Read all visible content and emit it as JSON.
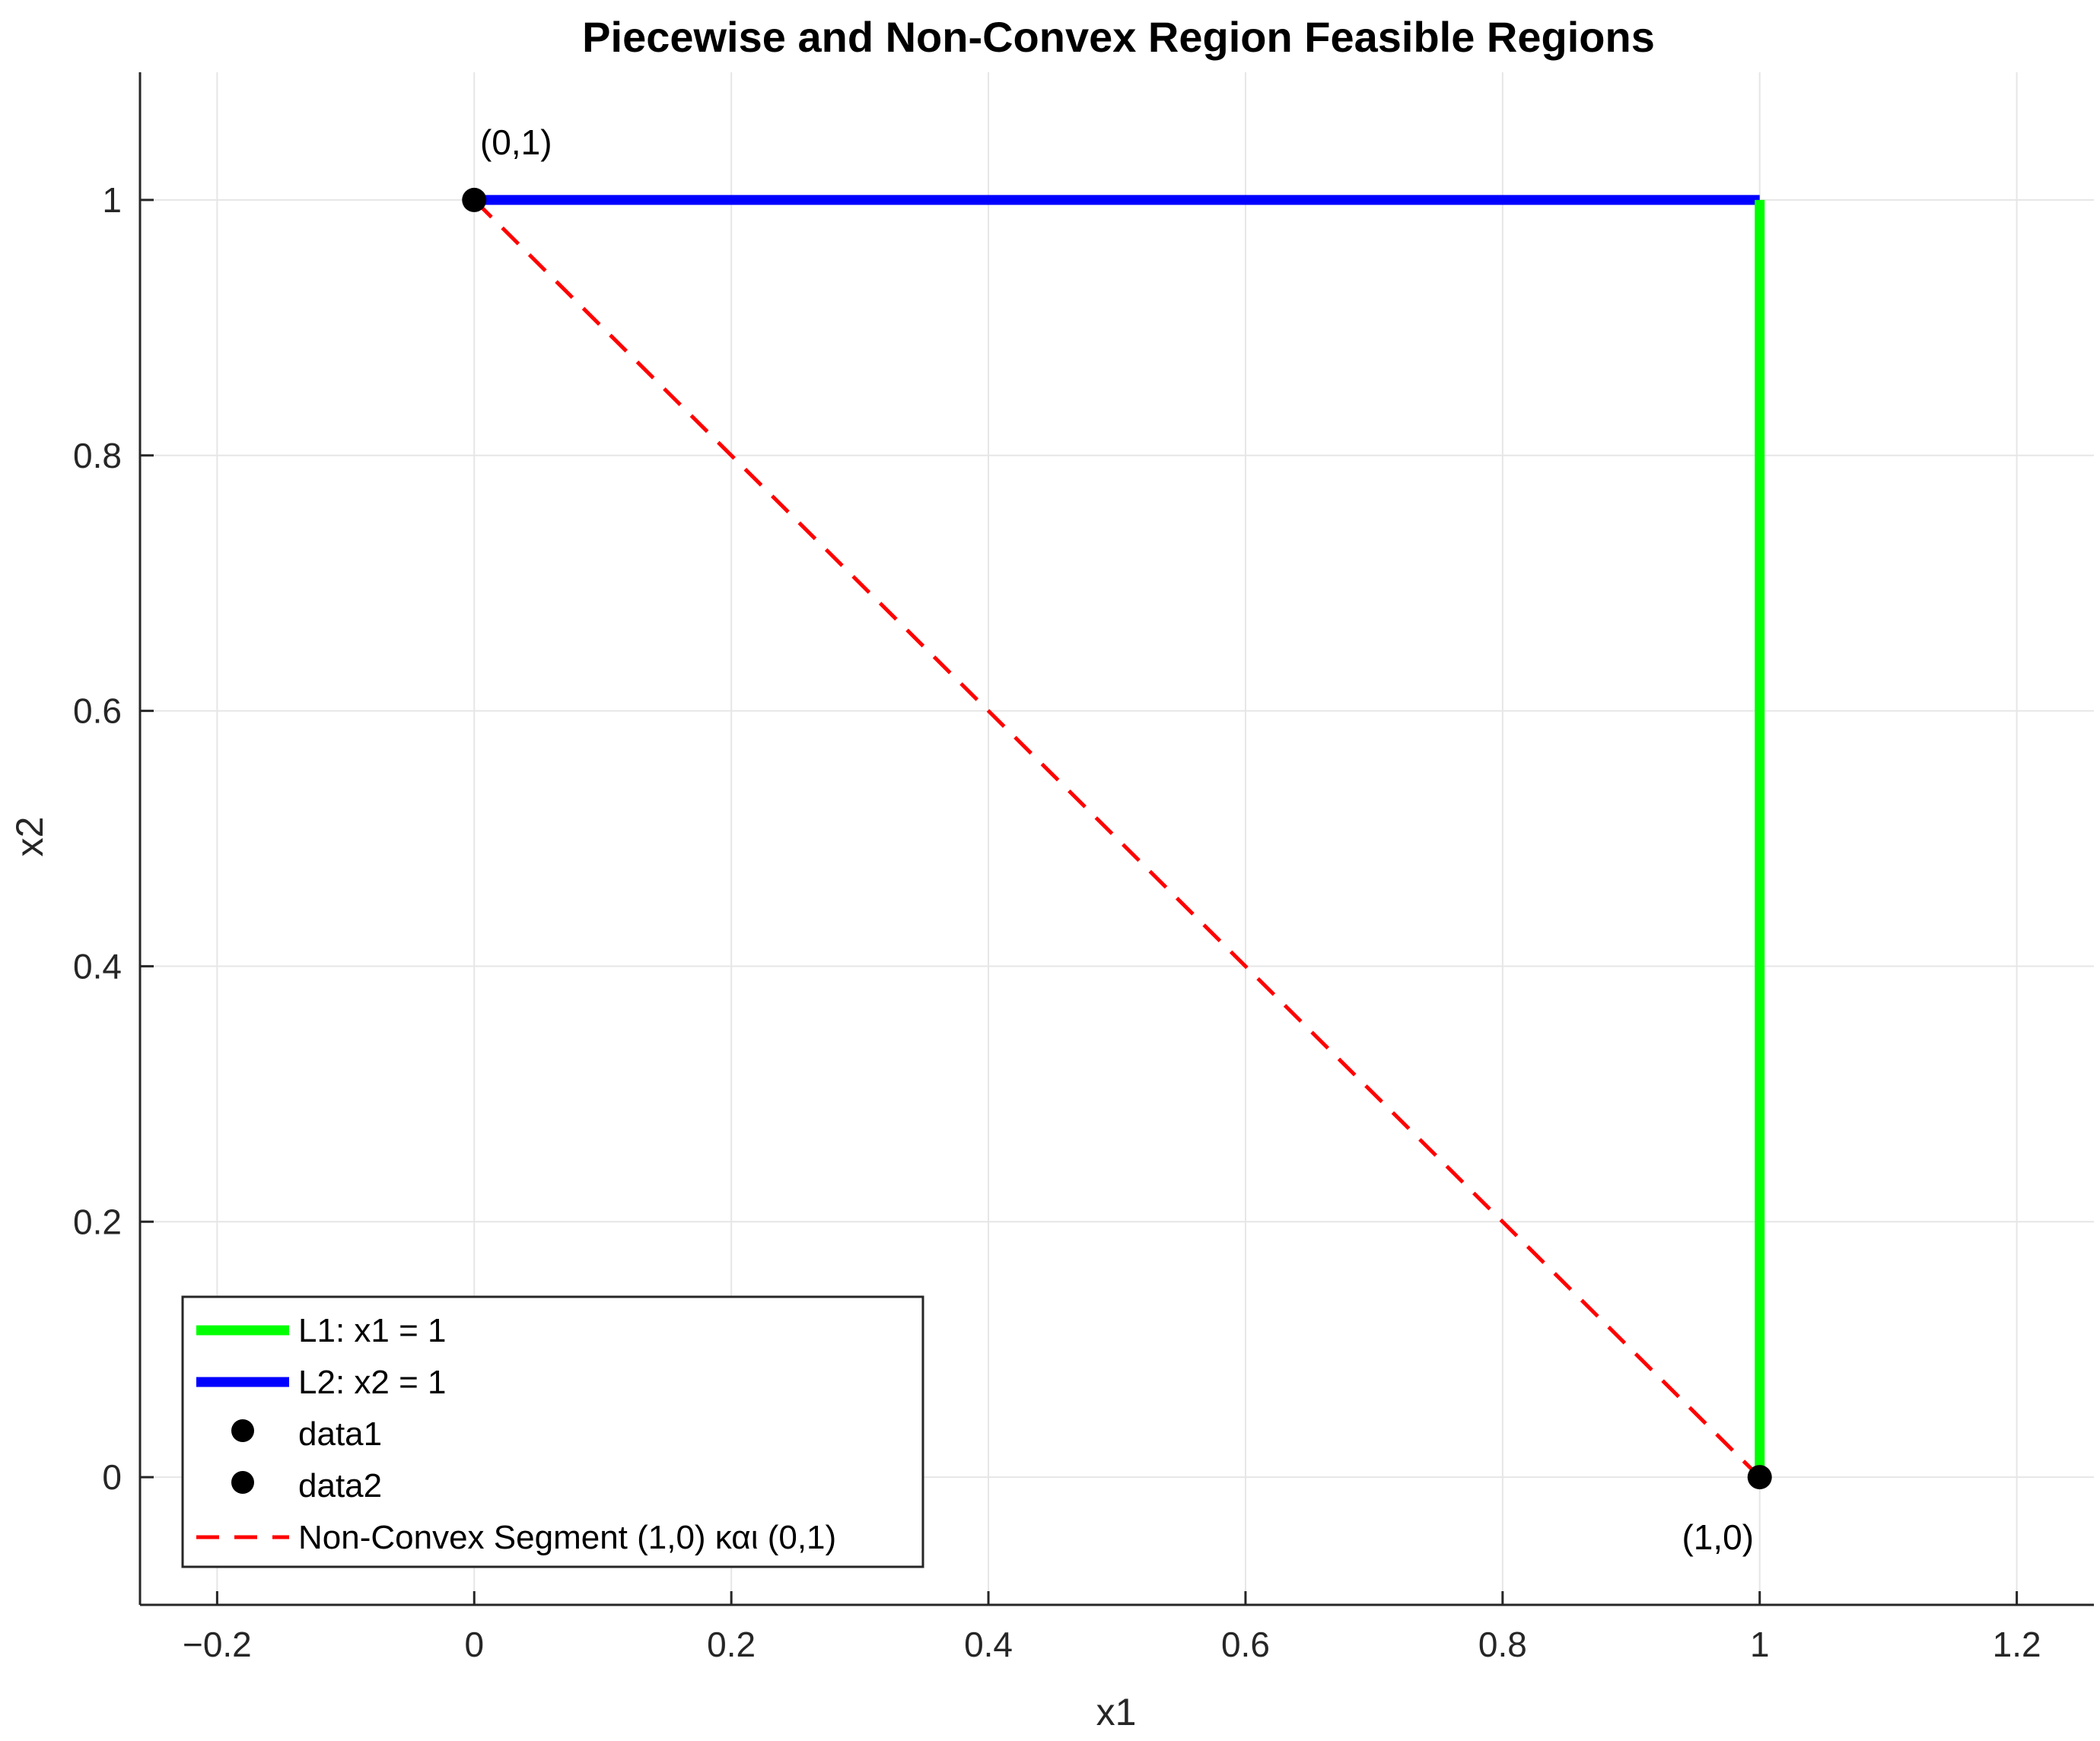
{
  "chart_data": {
    "type": "line",
    "title": "Piecewise and Non-Convex Region Feasible Regions",
    "xlabel": "x1",
    "ylabel": "x2",
    "xlim": [
      -0.26,
      1.26
    ],
    "ylim": [
      -0.1,
      1.1
    ],
    "grid": true,
    "legend_position": "bottom-left",
    "x_ticks": [
      -0.2,
      0,
      0.2,
      0.4,
      0.6,
      0.8,
      1,
      1.2
    ],
    "x_tick_labels": [
      "−0.2",
      "0",
      "0.2",
      "0.4",
      "0.6",
      "0.8",
      "1",
      "1.2"
    ],
    "y_ticks": [
      0,
      0.2,
      0.4,
      0.6,
      0.8,
      1
    ],
    "y_tick_labels": [
      "0",
      "0.2",
      "0.4",
      "0.6",
      "0.8",
      "1"
    ],
    "series": [
      {
        "name": "L1: x1 = 1",
        "style": "solid",
        "color": "#00ff00",
        "marker": "none",
        "x": [
          1,
          1
        ],
        "y": [
          0,
          1
        ]
      },
      {
        "name": "L2: x2 = 1",
        "style": "solid",
        "color": "#0000ff",
        "marker": "none",
        "x": [
          0,
          1
        ],
        "y": [
          1,
          1
        ]
      },
      {
        "name": "data1",
        "style": "none",
        "color": "#000000",
        "marker": "circle",
        "x": [
          0
        ],
        "y": [
          1
        ]
      },
      {
        "name": "data2",
        "style": "none",
        "color": "#000000",
        "marker": "circle",
        "x": [
          1
        ],
        "y": [
          0
        ]
      },
      {
        "name": "Non-Convex Segment (1,0) και (0,1)",
        "style": "dashed",
        "color": "#ff0000",
        "marker": "none",
        "x": [
          1,
          0
        ],
        "y": [
          0,
          1
        ]
      }
    ],
    "annotations": [
      {
        "text": "(0,1)",
        "x": 0,
        "y": 1,
        "position": "above"
      },
      {
        "text": "(1,0)",
        "x": 1,
        "y": 0,
        "position": "below"
      }
    ]
  }
}
